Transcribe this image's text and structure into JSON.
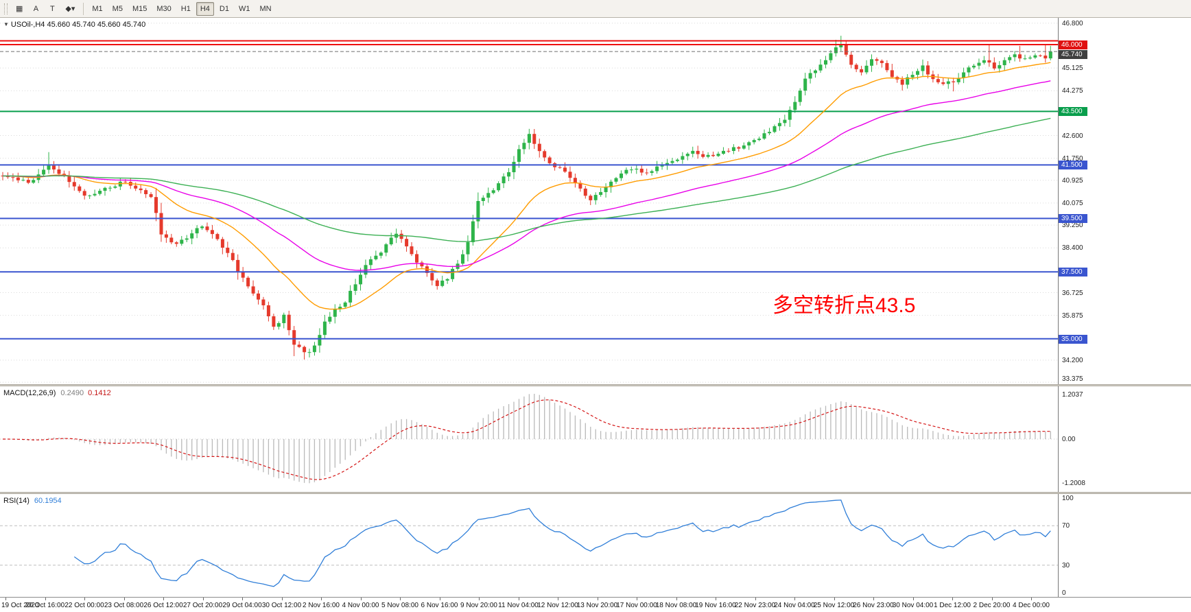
{
  "toolbar": {
    "tools": [
      {
        "name": "chart-windows-icon",
        "glyph": "▦"
      },
      {
        "name": "text-annotation-button",
        "glyph": "A"
      },
      {
        "name": "text-box-button",
        "glyph": "T"
      },
      {
        "name": "line-studies-menu-button",
        "glyph": "◆▾"
      }
    ],
    "timeframes": [
      "M1",
      "M5",
      "M15",
      "M30",
      "H1",
      "H4",
      "D1",
      "W1",
      "MN"
    ],
    "active_timeframe": "H4"
  },
  "main_chart": {
    "symbol_label": "USOil-,H4 45.660 45.740 45.660 45.740",
    "annotation": {
      "text": "多空转折点43.5",
      "color": "#ff0000"
    },
    "price_axis": {
      "max": 47.0,
      "min": 33.3,
      "ticks": [
        "46.800",
        "45.125",
        "44.275",
        "42.600",
        "41.750",
        "40.925",
        "40.075",
        "39.250",
        "38.400",
        "36.725",
        "35.875",
        "34.200",
        "33.375"
      ]
    },
    "levels": [
      {
        "price": 46.14,
        "color": "#ee1010",
        "width": 2
      },
      {
        "price": 46.0,
        "color": "#ee1010",
        "width": 2,
        "badge": "46.000",
        "badge_bg": "#e01010"
      },
      {
        "price": 45.74,
        "color": "#6e6e6e",
        "width": 1,
        "dashed": true,
        "badge": "45.740",
        "badge_bg": "#3f3f3f",
        "nudge": 4
      },
      {
        "price": 43.5,
        "color": "#089e4c",
        "width": 2,
        "badge": "43.500",
        "badge_bg": "#089e4c"
      },
      {
        "price": 41.5,
        "color": "#3a55cf",
        "width": 2,
        "badge": "41.500",
        "badge_bg": "#3a55cf"
      },
      {
        "price": 39.5,
        "color": "#3a55cf",
        "width": 2,
        "badge": "39.500",
        "badge_bg": "#3a55cf"
      },
      {
        "price": 37.5,
        "color": "#3a55cf",
        "width": 2,
        "badge": "37.500",
        "badge_bg": "#3a55cf"
      },
      {
        "price": 35.0,
        "color": "#3a55cf",
        "width": 2,
        "badge": "35.000",
        "badge_bg": "#3a55cf"
      }
    ],
    "colors": {
      "up": "#2eb44a",
      "down": "#e53a2c",
      "ma_fast": "#ff9c00",
      "ma_mid": "#e800e8",
      "ma_slow": "#3cb054",
      "grid": "#d9d9d9"
    }
  },
  "macd": {
    "label": "MACD(12,26,9)",
    "value_main": "0.2490",
    "value_signal": "0.1412",
    "axis": [
      "1.2037",
      "0.00",
      "-1.2008"
    ],
    "fast": 12,
    "slow": 26,
    "signal": 9,
    "hist_color": "#b9b9b9",
    "signal_color": "#d41414"
  },
  "rsi": {
    "label": "RSI(14)",
    "value": "60.1954",
    "period": 14,
    "axis": [
      "100",
      "70",
      "30",
      "0"
    ],
    "levels": [
      70,
      30
    ],
    "color": "#2f7ed8"
  },
  "time_axis": {
    "labels": [
      "19 Oct 2020",
      "20 Oct 16:00",
      "22 Oct 00:00",
      "23 Oct 08:00",
      "26 Oct 12:00",
      "27 Oct 20:00",
      "29 Oct 04:00",
      "30 Oct 12:00",
      "2 Nov 16:00",
      "4 Nov 00:00",
      "5 Nov 08:00",
      "6 Nov 16:00",
      "9 Nov 20:00",
      "11 Nov 04:00",
      "12 Nov 12:00",
      "13 Nov 20:00",
      "17 Nov 00:00",
      "18 Nov 08:00",
      "19 Nov 16:00",
      "22 Nov 23:00",
      "24 Nov 04:00",
      "25 Nov 12:00",
      "26 Nov 23:00",
      "30 Nov 04:00",
      "1 Dec 12:00",
      "2 Dec 20:00",
      "4 Dec 00:00"
    ]
  },
  "chart_data": {
    "type": "candlestick",
    "symbol": "USOil-",
    "timeframe": "H4",
    "ohlc_current": {
      "open": 45.66,
      "high": 45.74,
      "low": 45.66,
      "close": 45.74
    },
    "price_range": [
      33.3,
      47.0
    ],
    "num_candles": 206,
    "spacing": 7.45,
    "candle_width": 5,
    "seed": 20201204,
    "last_close": 45.74,
    "ma_fast": 22,
    "ma_mid": 55,
    "ma_slow": 120,
    "waypoints": [
      [
        0,
        41.1
      ],
      [
        5,
        40.85
      ],
      [
        9,
        41.45
      ],
      [
        12,
        41.05
      ],
      [
        16,
        40.3
      ],
      [
        20,
        40.6
      ],
      [
        24,
        40.9
      ],
      [
        27,
        40.55
      ],
      [
        29,
        40.35
      ],
      [
        31,
        38.9
      ],
      [
        34,
        38.55
      ],
      [
        37,
        38.9
      ],
      [
        39,
        39.25
      ],
      [
        42,
        38.7
      ],
      [
        45,
        37.9
      ],
      [
        48,
        36.9
      ],
      [
        51,
        36.2
      ],
      [
        53,
        35.4
      ],
      [
        55,
        35.9
      ],
      [
        57,
        34.8
      ],
      [
        59,
        34.45
      ],
      [
        61,
        34.7
      ],
      [
        63,
        35.6
      ],
      [
        65,
        36.1
      ],
      [
        67,
        36.35
      ],
      [
        69,
        37.1
      ],
      [
        71,
        37.7
      ],
      [
        74,
        38.3
      ],
      [
        77,
        38.95
      ],
      [
        79,
        38.4
      ],
      [
        81,
        37.85
      ],
      [
        83,
        37.45
      ],
      [
        85,
        37.05
      ],
      [
        87,
        37.3
      ],
      [
        89,
        37.8
      ],
      [
        91,
        38.6
      ],
      [
        93,
        40.1
      ],
      [
        95,
        40.45
      ],
      [
        97,
        40.8
      ],
      [
        99,
        41.3
      ],
      [
        101,
        42.05
      ],
      [
        103,
        42.6
      ],
      [
        105,
        42.0
      ],
      [
        107,
        41.55
      ],
      [
        109,
        41.35
      ],
      [
        111,
        41.0
      ],
      [
        113,
        40.55
      ],
      [
        115,
        40.15
      ],
      [
        117,
        40.45
      ],
      [
        119,
        40.85
      ],
      [
        121,
        41.15
      ],
      [
        123,
        41.4
      ],
      [
        125,
        41.2
      ],
      [
        127,
        41.3
      ],
      [
        129,
        41.5
      ],
      [
        131,
        41.65
      ],
      [
        133,
        41.85
      ],
      [
        135,
        41.95
      ],
      [
        137,
        41.75
      ],
      [
        139,
        41.85
      ],
      [
        141,
        42.0
      ],
      [
        143,
        42.1
      ],
      [
        145,
        42.25
      ],
      [
        147,
        42.45
      ],
      [
        149,
        42.65
      ],
      [
        151,
        42.9
      ],
      [
        153,
        43.2
      ],
      [
        155,
        43.9
      ],
      [
        157,
        44.75
      ],
      [
        159,
        45.0
      ],
      [
        161,
        45.4
      ],
      [
        163,
        45.9
      ],
      [
        164,
        46.05
      ],
      [
        166,
        45.3
      ],
      [
        168,
        44.95
      ],
      [
        170,
        45.5
      ],
      [
        172,
        45.3
      ],
      [
        174,
        44.85
      ],
      [
        176,
        44.5
      ],
      [
        178,
        44.9
      ],
      [
        180,
        45.15
      ],
      [
        182,
        44.75
      ],
      [
        184,
        44.5
      ],
      [
        186,
        44.65
      ],
      [
        188,
        44.95
      ],
      [
        190,
        45.2
      ],
      [
        192,
        45.4
      ],
      [
        194,
        45.15
      ],
      [
        196,
        45.35
      ],
      [
        198,
        45.6
      ],
      [
        200,
        45.5
      ],
      [
        202,
        45.65
      ],
      [
        204,
        45.55
      ],
      [
        205,
        45.74
      ]
    ],
    "spikes": [
      {
        "k": 9,
        "high": 41.98
      },
      {
        "k": 57,
        "low": 34.35
      },
      {
        "k": 59,
        "low": 34.22
      },
      {
        "k": 60,
        "low": 34.3
      },
      {
        "k": 103,
        "high": 42.85
      },
      {
        "k": 163,
        "high": 46.18
      },
      {
        "k": 164,
        "high": 46.33,
        "close": 46.02
      },
      {
        "k": 176,
        "low": 44.28
      },
      {
        "k": 186,
        "low": 44.25
      },
      {
        "k": 193,
        "high": 45.98
      },
      {
        "k": 199,
        "high": 45.95
      },
      {
        "k": 204,
        "high": 46.0
      }
    ]
  }
}
